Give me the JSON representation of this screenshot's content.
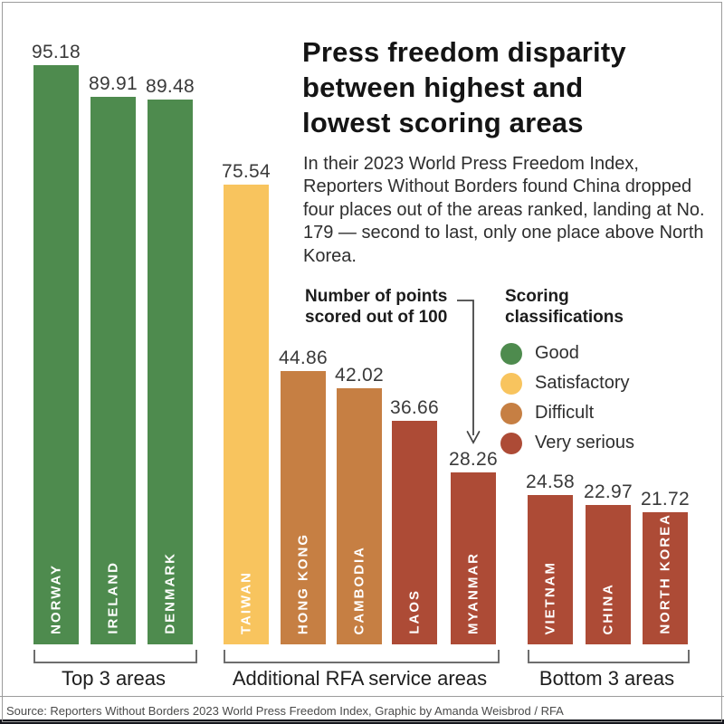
{
  "header": {
    "title_lines": [
      "Press freedom disparity",
      "between highest and",
      "lowest scoring areas"
    ],
    "subtitle": "In their 2023 World Press Freedom Index, Reporters Without Borders found China dropped four places out of the areas ranked, landing at No. 179 — second to last, only one place above North Korea."
  },
  "annotation": {
    "lines": [
      "Number of points",
      "scored out of 100"
    ]
  },
  "legend": {
    "title_lines": [
      "Scoring",
      "classifications"
    ],
    "items": [
      {
        "label": "Good",
        "color": "#4e8b4e"
      },
      {
        "label": "Satisfactory",
        "color": "#f8c45e"
      },
      {
        "label": "Difficult",
        "color": "#c67f43"
      },
      {
        "label": "Very serious",
        "color": "#ad4b36"
      }
    ]
  },
  "chart_data": {
    "type": "bar",
    "title": "Press freedom disparity between highest and lowest scoring areas",
    "ylabel": "Number of points scored out of 100",
    "ylim": [
      0,
      100
    ],
    "legend_position": "right",
    "grid": false,
    "bars": [
      {
        "area": "NORWAY",
        "value": 95.18,
        "classification": "Good",
        "group": "Top 3 areas"
      },
      {
        "area": "IRELAND",
        "value": 89.91,
        "classification": "Good",
        "group": "Top 3 areas"
      },
      {
        "area": "DENMARK",
        "value": 89.48,
        "classification": "Good",
        "group": "Top 3 areas"
      },
      {
        "area": "TAIWAN",
        "value": 75.54,
        "classification": "Satisfactory",
        "group": "Additional RFA service areas"
      },
      {
        "area": "HONG KONG",
        "value": 44.86,
        "classification": "Difficult",
        "group": "Additional RFA service areas"
      },
      {
        "area": "CAMBODIA",
        "value": 42.02,
        "classification": "Difficult",
        "group": "Additional RFA service areas"
      },
      {
        "area": "LAOS",
        "value": 36.66,
        "classification": "Very serious",
        "group": "Additional RFA service areas"
      },
      {
        "area": "MYANMAR",
        "value": 28.26,
        "classification": "Very serious",
        "group": "Additional RFA service areas"
      },
      {
        "area": "VIETNAM",
        "value": 24.58,
        "classification": "Very serious",
        "group": "Bottom 3 areas"
      },
      {
        "area": "CHINA",
        "value": 22.97,
        "classification": "Very serious",
        "group": "Bottom 3 areas"
      },
      {
        "area": "NORTH KOREA",
        "value": 21.72,
        "classification": "Very serious",
        "group": "Bottom 3 areas"
      }
    ],
    "groups": [
      {
        "label": "Top 3 areas"
      },
      {
        "label": "Additional RFA service areas"
      },
      {
        "label": "Bottom 3 areas"
      }
    ]
  },
  "footer": {
    "source": "Source: Reporters Without Borders 2023 World Press Freedom Index, Graphic by Amanda Weisbrod / RFA"
  }
}
